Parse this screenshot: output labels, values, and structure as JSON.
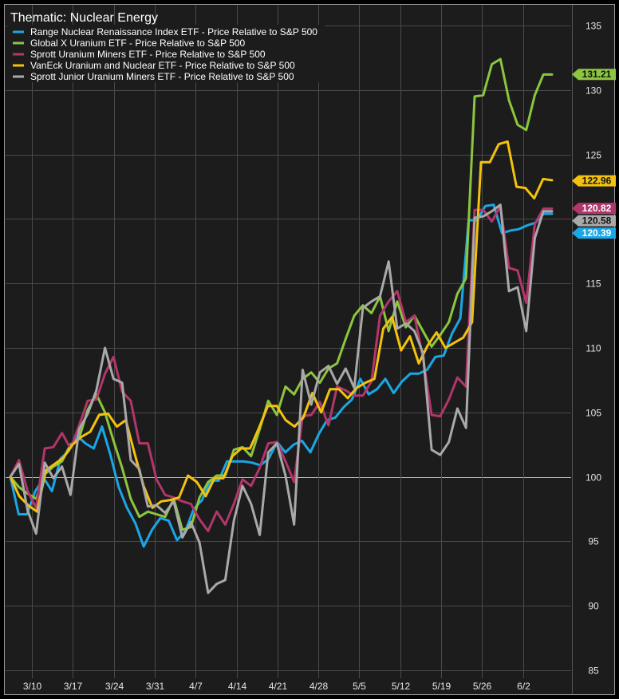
{
  "chart_data": {
    "type": "line",
    "title": "Thematic: Nuclear Energy",
    "x_ticks": [
      "3/10",
      "3/17",
      "3/24",
      "3/31",
      "4/7",
      "4/14",
      "4/21",
      "4/28",
      "5/5",
      "5/12",
      "5/19",
      "5/26",
      "6/2"
    ],
    "y_ticks": [
      "85",
      "90",
      "95",
      "100",
      "105",
      "110",
      "115",
      "120",
      "125",
      "130",
      "135"
    ],
    "ylim": [
      85,
      135
    ],
    "reference_value": 100,
    "grid": true,
    "legend_position": "top-left",
    "series": [
      {
        "name": "Range Nuclear Renaissance Index ETF - Price Relative to S&P 500",
        "color": "#1aa7e6",
        "last_label": "120.39",
        "last": 120.39,
        "values": [
          100,
          97.1,
          97.1,
          98.9,
          99.9,
          98.9,
          101.4,
          102.0,
          103.2,
          102.6,
          102.2,
          103.9,
          101.7,
          99.2,
          97.6,
          96.4,
          94.6,
          95.9,
          96.8,
          96.6,
          95.1,
          95.8,
          97.5,
          98.2,
          99.7,
          99.7,
          101.2,
          101.2,
          101.2,
          101.1,
          100.9,
          101.4,
          102.7,
          101.9,
          102.5,
          102.8,
          101.9,
          103.3,
          104.4,
          104.6,
          105.4,
          106.0,
          107.6,
          106.4,
          106.8,
          107.6,
          106.5,
          107.4,
          108.0,
          108.0,
          108.3,
          109.3,
          109.4,
          111.1,
          112.3,
          119.9,
          119.9,
          121.0,
          121.1,
          118.9,
          119.1,
          119.2,
          119.5,
          119.7,
          120.4,
          120.4
        ]
      },
      {
        "name": "Global X Uranium ETF - Price Relative to S&P 500",
        "color": "#8cc63e",
        "last_label": "131.21",
        "last": 131.21,
        "values": [
          100,
          99.2,
          98.7,
          98.3,
          100.2,
          100.8,
          101.2,
          102.5,
          103.0,
          105.2,
          106.4,
          105.0,
          102.8,
          100.7,
          98.3,
          96.9,
          97.3,
          97.1,
          96.9,
          98.3,
          95.9,
          96.1,
          98.4,
          99.6,
          100.1,
          100.1,
          102.1,
          102.3,
          101.6,
          103.7,
          105.9,
          104.8,
          107.0,
          106.4,
          107.6,
          108.1,
          107.3,
          108.4,
          108.8,
          110.7,
          112.5,
          113.3,
          112.7,
          114.0,
          111.3,
          113.6,
          111.6,
          112.5,
          111.3,
          110.1,
          111.0,
          112.0,
          114.2,
          115.4,
          129.5,
          129.6,
          132.0,
          132.4,
          129.2,
          127.3,
          126.9,
          129.6,
          131.2,
          131.2
        ]
      },
      {
        "name": "Sprott Uranium Miners ETF - Price Relative to S&P 500",
        "color": "#b2366b",
        "last_label": "120.82",
        "last": 120.82,
        "values": [
          100,
          101.3,
          98.9,
          97.6,
          102.2,
          102.3,
          103.4,
          102.2,
          104.0,
          105.9,
          106.0,
          108.0,
          109.3,
          106.6,
          105.9,
          102.6,
          102.6,
          99.8,
          98.6,
          98.4,
          98.1,
          97.9,
          96.7,
          95.8,
          97.3,
          96.3,
          97.9,
          99.8,
          99.3,
          100.7,
          102.6,
          102.7,
          101.2,
          99.6,
          104.7,
          104.8,
          105.8,
          104.0,
          107.0,
          106.7,
          106.3,
          106.3,
          107.4,
          112.5,
          113.6,
          114.4,
          112.0,
          112.5,
          109.2,
          104.8,
          104.7,
          106.0,
          107.7,
          107.0,
          120.7,
          120.7,
          119.8,
          121.0,
          116.2,
          116.0,
          113.5,
          119.6,
          120.8,
          120.8
        ]
      },
      {
        "name": "VanEck Uranium and Nuclear ETF - Price Relative to S&P 500",
        "color": "#f4c20d",
        "last_label": "122.96",
        "last": 122.96,
        "values": [
          100,
          98.5,
          97.8,
          97.3,
          100.5,
          101.0,
          101.5,
          102.5,
          103.1,
          103.5,
          104.8,
          104.9,
          103.9,
          104.4,
          101.8,
          99.3,
          97.6,
          98.1,
          98.2,
          98.4,
          100.1,
          99.6,
          98.5,
          99.9,
          99.9,
          101.6,
          102.2,
          102.2,
          103.8,
          105.5,
          105.5,
          104.4,
          103.9,
          104.6,
          106.5,
          105.0,
          106.8,
          106.8,
          106.1,
          106.9,
          107.3,
          107.6,
          111.5,
          112.4,
          109.8,
          110.9,
          108.8,
          110.2,
          111.2,
          110.0,
          110.4,
          110.8,
          112.0,
          124.4,
          124.4,
          125.8,
          126.0,
          122.5,
          122.4,
          121.6,
          123.1,
          123.0
        ]
      },
      {
        "name": "Sprott Junior Uranium Miners ETF - Price Relative to S&P 500",
        "color": "#a9a9a9",
        "last_label": "120.58",
        "last": 120.58,
        "values": [
          100,
          101.0,
          97.4,
          95.6,
          101.1,
          99.9,
          100.8,
          98.6,
          103.7,
          104.9,
          106.7,
          110.0,
          107.6,
          107.3,
          101.3,
          100.6,
          97.7,
          97.8,
          97.2,
          98.1,
          95.3,
          96.5,
          94.9,
          91.0,
          91.7,
          92.0,
          96.6,
          99.3,
          97.9,
          95.5,
          101.9,
          102.6,
          100.1,
          96.3,
          108.3,
          105.6,
          108.1,
          108.6,
          107.2,
          108.4,
          106.9,
          113.1,
          113.6,
          114.0,
          116.7,
          111.5,
          111.9,
          111.3,
          109.6,
          102.1,
          101.7,
          102.7,
          105.3,
          103.8,
          120.1,
          120.2,
          120.6,
          121.1,
          114.4,
          114.7,
          111.3,
          118.5,
          120.6,
          120.6
        ]
      }
    ]
  }
}
